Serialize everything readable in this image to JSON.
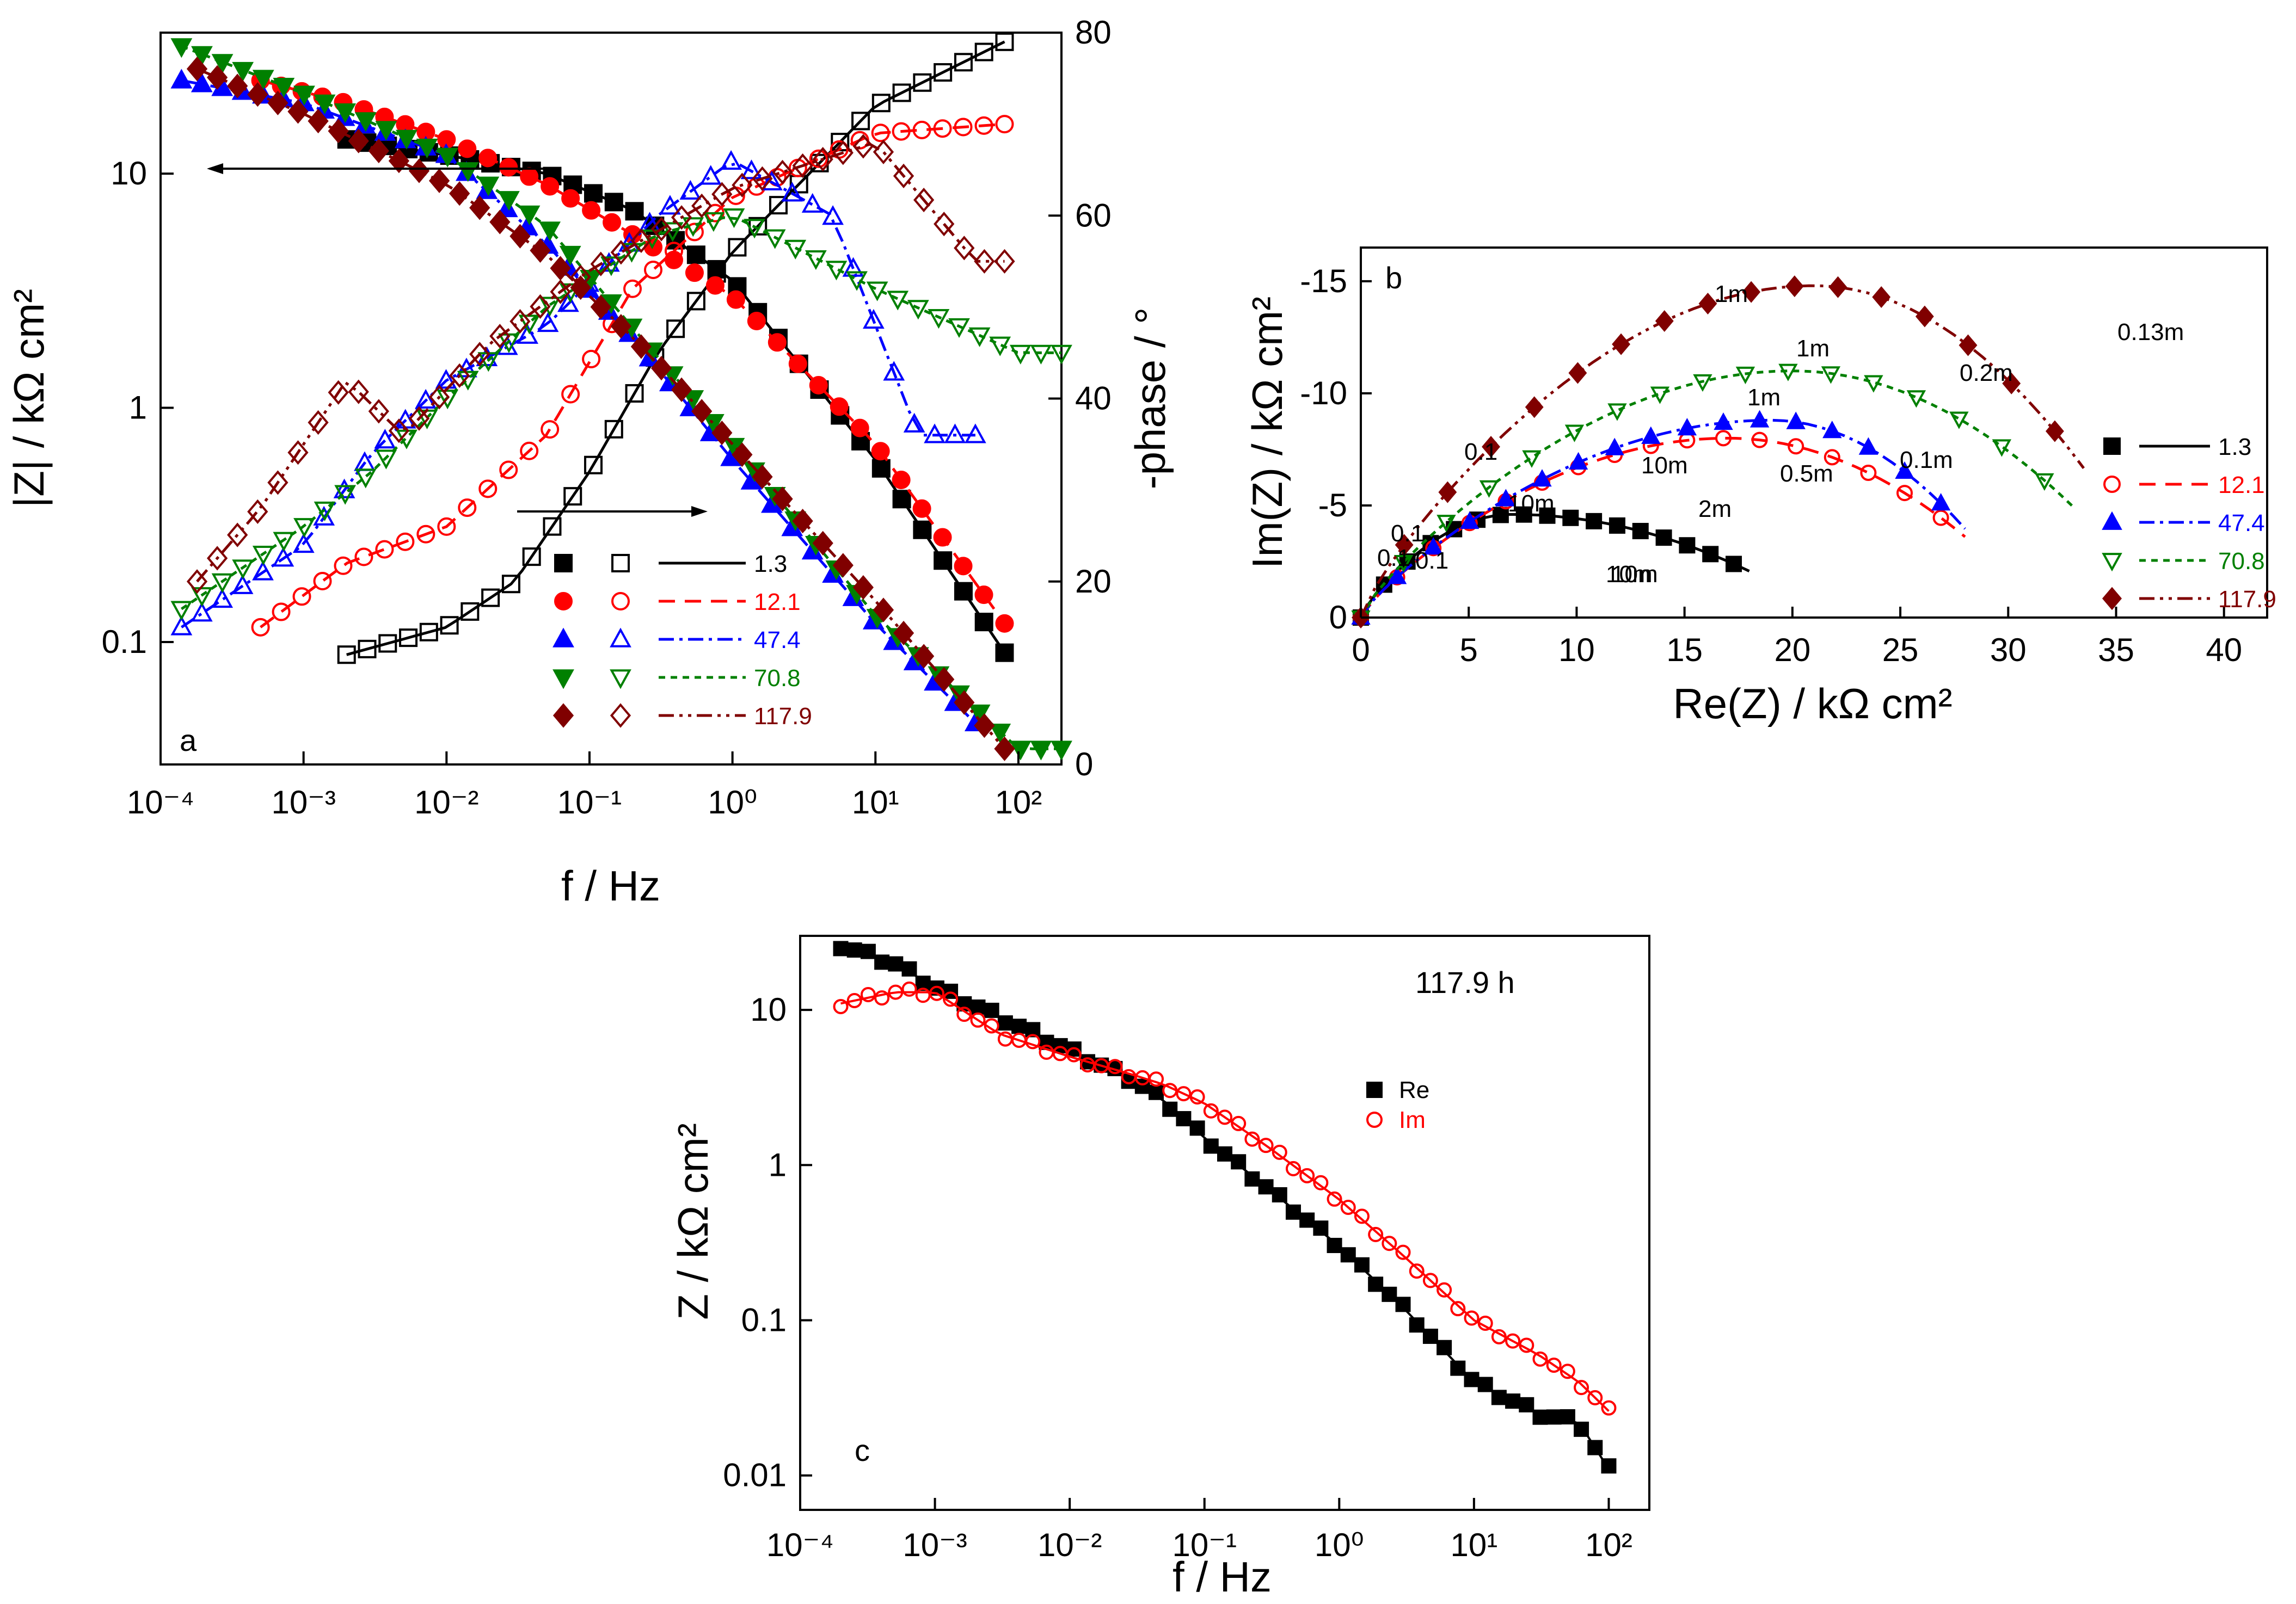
{
  "colors": {
    "1.3": "#000000",
    "12.1": "#ff0000",
    "47.4": "#0000ff",
    "70.8": "#008000",
    "117.9": "#800000"
  },
  "chart_data": [
    {
      "panel": "a",
      "type": "scatter",
      "panel_label": "a",
      "xlabel": "f / Hz",
      "ylabel": "|Z| / kΩ cm²",
      "y2label": "-phase / °",
      "xscale": "log",
      "yscale": "log",
      "xlim": [
        0.0001,
        200
      ],
      "ylim": [
        0.03,
        40
      ],
      "y2lim": [
        0,
        80
      ],
      "x_ticks": [
        "10⁻⁴",
        "10⁻³",
        "10⁻²",
        "10⁻¹",
        "10⁰",
        "10¹",
        "10²"
      ],
      "y_ticks": [
        "0.1",
        "1",
        "10"
      ],
      "y2_ticks": [
        "0",
        "20",
        "40",
        "60",
        "80"
      ],
      "legend": {
        "placement": "bottom-center",
        "series": [
          "1.3",
          "12.1",
          "47.4",
          "70.8",
          "117.9"
        ]
      },
      "annotations": [
        "arrow pointing left to |Z| axis",
        "arrow pointing right to phase axis"
      ],
      "series": [
        {
          "name": "1.3",
          "marker": "square",
          "x_start": 0.002,
          "x_end": 80,
          "mag_low": 14,
          "mag_plateau": [
            [
              0.002,
              14
            ],
            [
              0.01,
              12
            ],
            [
              0.05,
              10
            ],
            [
              0.2,
              7
            ],
            [
              1,
              3.5
            ],
            [
              10,
              0.6
            ],
            [
              80,
              0.09
            ]
          ],
          "phase": [
            [
              0.002,
              12
            ],
            [
              0.01,
              15
            ],
            [
              0.03,
              20
            ],
            [
              0.1,
              32
            ],
            [
              0.3,
              45
            ],
            [
              1,
              56
            ],
            [
              10,
              72
            ],
            [
              80,
              79
            ]
          ]
        },
        {
          "name": "12.1",
          "marker": "circle",
          "x_start": 0.0005,
          "x_end": 80,
          "mag": [
            [
              0.0005,
              25
            ],
            [
              0.002,
              20
            ],
            [
              0.01,
              14
            ],
            [
              0.05,
              9
            ],
            [
              0.2,
              5.5
            ],
            [
              1,
              3
            ],
            [
              10,
              0.7
            ],
            [
              80,
              0.12
            ]
          ],
          "phase": [
            [
              0.0005,
              15
            ],
            [
              0.002,
              22
            ],
            [
              0.01,
              26
            ],
            [
              0.05,
              36
            ],
            [
              0.2,
              52
            ],
            [
              1,
              62
            ],
            [
              10,
              69
            ],
            [
              80,
              70
            ]
          ]
        },
        {
          "name": "47.4",
          "marker": "triangle-up",
          "x_start": 0.00014,
          "x_end": 50,
          "mag": [
            [
              0.00014,
              25
            ],
            [
              0.001,
              20
            ],
            [
              0.01,
              12
            ],
            [
              0.05,
              5
            ],
            [
              0.2,
              2
            ],
            [
              1,
              0.6
            ],
            [
              10,
              0.12
            ],
            [
              50,
              0.045
            ]
          ],
          "phase": [
            [
              0.00014,
              15
            ],
            [
              0.001,
              24
            ],
            [
              0.003,
              34
            ],
            [
              0.01,
              42
            ],
            [
              0.05,
              48
            ],
            [
              0.3,
              60
            ],
            [
              1,
              66
            ],
            [
              5,
              60
            ],
            [
              20,
              36
            ]
          ]
        },
        {
          "name": "70.8",
          "marker": "triangle-down",
          "x_start": 0.00014,
          "x_end": 200,
          "mag": [
            [
              0.00014,
              35
            ],
            [
              0.001,
              22
            ],
            [
              0.01,
              12
            ],
            [
              0.05,
              6
            ],
            [
              0.2,
              2.2
            ],
            [
              1,
              0.7
            ],
            [
              10,
              0.13
            ],
            [
              100,
              0.035
            ]
          ],
          "phase": [
            [
              0.00014,
              17
            ],
            [
              0.001,
              26
            ],
            [
              0.003,
              32
            ],
            [
              0.01,
              40
            ],
            [
              0.05,
              50
            ],
            [
              0.3,
              58
            ],
            [
              1,
              60
            ],
            [
              10,
              52
            ],
            [
              100,
              45
            ]
          ]
        },
        {
          "name": "117.9",
          "marker": "diamond",
          "x_start": 0.00018,
          "x_end": 80,
          "mag": [
            [
              0.00018,
              28
            ],
            [
              0.001,
              18
            ],
            [
              0.01,
              9
            ],
            [
              0.05,
              4.5
            ],
            [
              0.2,
              2
            ],
            [
              1,
              0.7
            ],
            [
              10,
              0.15
            ],
            [
              80,
              0.035
            ]
          ],
          "phase": [
            [
              0.00018,
              20
            ],
            [
              0.0005,
              28
            ],
            [
              0.002,
              42
            ],
            [
              0.005,
              36
            ],
            [
              0.02,
              46
            ],
            [
              0.1,
              54
            ],
            [
              1,
              63
            ],
            [
              10,
              68
            ],
            [
              50,
              55
            ]
          ]
        }
      ]
    },
    {
      "panel": "b",
      "type": "scatter",
      "panel_label": "b",
      "xlabel": "Re(Z) / kΩ cm²",
      "ylabel": "Im(Z) / kΩ cm²",
      "xlim": [
        0,
        42
      ],
      "ylim": [
        0,
        -16.5
      ],
      "x_ticks": [
        "0",
        "5",
        "10",
        "15",
        "20",
        "25",
        "30",
        "35",
        "40"
      ],
      "y_ticks": [
        "0",
        "-5",
        "-10",
        "-15"
      ],
      "legend": {
        "placement": "right",
        "series": [
          "1.3",
          "12.1",
          "47.4",
          "70.8",
          "117.9"
        ]
      },
      "frequency_labels": [
        "1m",
        "1m",
        "1m",
        "0.13m",
        "0.2m",
        "0.1",
        "10m",
        "0.1m",
        "0.5m",
        "10m",
        "0.1",
        "0.1",
        "0.1",
        "2m",
        "10m",
        "10m"
      ],
      "series": [
        {
          "name": "1.3",
          "end_re": 18,
          "peak": [
            7,
            -4.6
          ]
        },
        {
          "name": "12.1",
          "end_re": 28,
          "peak": [
            17,
            -8
          ]
        },
        {
          "name": "47.4",
          "end_re": 28,
          "peak": [
            19,
            -8.8
          ]
        },
        {
          "name": "70.8",
          "end_re": 33,
          "peak": [
            20,
            -11
          ]
        },
        {
          "name": "117.9",
          "end_re": 33.5,
          "peak": [
            21,
            -14.8
          ]
        }
      ]
    },
    {
      "panel": "c",
      "type": "scatter",
      "panel_label": "c",
      "title": "117.9 h",
      "xlabel": "f / Hz",
      "ylabel": "Z / kΩ cm²",
      "xscale": "log",
      "yscale": "log",
      "xlim": [
        0.0001,
        200
      ],
      "ylim": [
        0.006,
        30
      ],
      "x_ticks": [
        "10⁻⁴",
        "10⁻³",
        "10⁻²",
        "10⁻¹",
        "10⁰",
        "10¹",
        "10²"
      ],
      "y_ticks": [
        "0.01",
        "0.1",
        "1",
        "10"
      ],
      "legend": {
        "placement": "right",
        "series": [
          "Re",
          "Im"
        ]
      },
      "series": [
        {
          "name": "Re",
          "marker": "square",
          "color": "#000000",
          "points": [
            [
              0.0002,
              26
            ],
            [
              0.0005,
              20
            ],
            [
              0.001,
              14
            ],
            [
              0.003,
              9
            ],
            [
              0.01,
              5.5
            ],
            [
              0.03,
              3.5
            ],
            [
              0.05,
              2.6
            ],
            [
              0.1,
              1.5
            ],
            [
              0.3,
              0.7
            ],
            [
              1,
              0.3
            ],
            [
              3,
              0.12
            ],
            [
              10,
              0.04
            ],
            [
              30,
              0.025
            ],
            [
              60,
              0.022
            ],
            [
              100,
              0.011
            ]
          ]
        },
        {
          "name": "Im",
          "marker": "circle",
          "color": "#ff0000",
          "points": [
            [
              0.0002,
              11
            ],
            [
              0.0005,
              13
            ],
            [
              0.001,
              13
            ],
            [
              0.003,
              7
            ],
            [
              0.01,
              5
            ],
            [
              0.03,
              3.8
            ],
            [
              0.05,
              3.3
            ],
            [
              0.1,
              2.5
            ],
            [
              0.3,
              1.3
            ],
            [
              1,
              0.6
            ],
            [
              3,
              0.26
            ],
            [
              10,
              0.1
            ],
            [
              30,
              0.06
            ],
            [
              60,
              0.04
            ],
            [
              100,
              0.026
            ]
          ]
        }
      ]
    }
  ]
}
